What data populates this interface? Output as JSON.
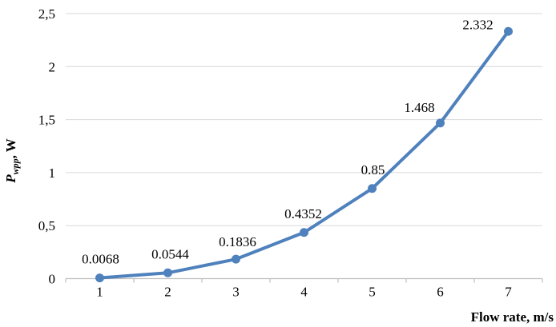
{
  "chart_data": {
    "type": "line",
    "title": "",
    "x": [
      1,
      2,
      3,
      4,
      5,
      6,
      7
    ],
    "series": [
      {
        "name": "Pwpp",
        "values": [
          0.0068,
          0.0544,
          0.1836,
          0.4352,
          0.85,
          1.468,
          2.332
        ],
        "point_labels": [
          "0.0068",
          "0.0544",
          "0.1836",
          "0.4352",
          "0.85",
          "1.468",
          "2.332"
        ]
      }
    ],
    "xlabel": "Flow rate, m/s",
    "ylabel": "Pwpp, W",
    "ylabel_parts": {
      "symbol": "P",
      "subscript": "wpp",
      "unit": ", W"
    },
    "x_tick_labels": [
      "1",
      "2",
      "3",
      "4",
      "5",
      "6",
      "7"
    ],
    "y_ticks": [
      0,
      0.5,
      1,
      1.5,
      2,
      2.5
    ],
    "y_tick_labels": [
      "0",
      "0,5",
      "1",
      "1,5",
      "2",
      "2,5"
    ],
    "ylim": [
      0,
      2.5
    ],
    "grid": "horizontal",
    "legend": "none",
    "colors": {
      "series": "#4F81BD",
      "gridline": "#D9D9D9",
      "axis": "#BFBFBF",
      "text": "#000000",
      "background": "#FFFFFF"
    }
  }
}
